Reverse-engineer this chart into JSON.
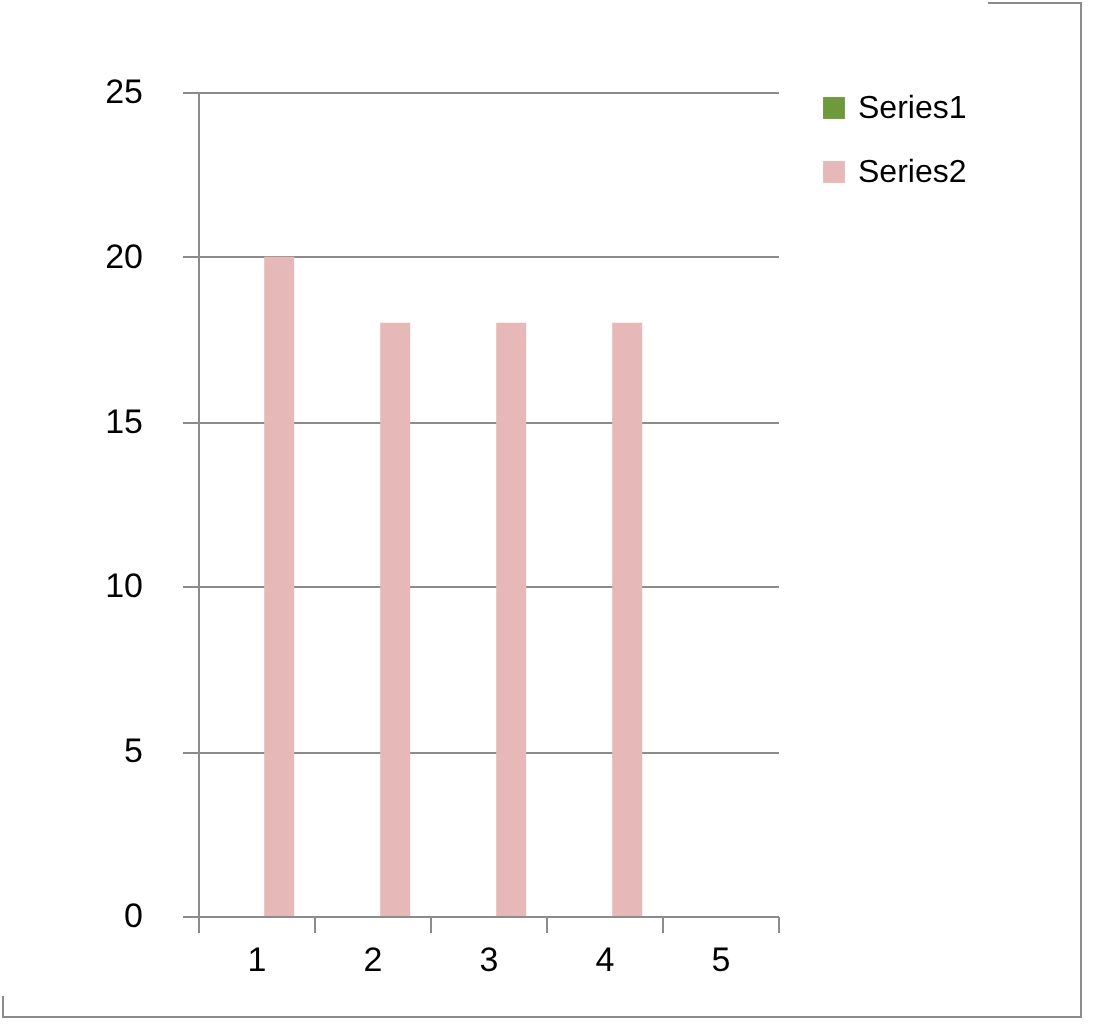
{
  "chart_data": {
    "type": "bar",
    "categories": [
      "1",
      "2",
      "3",
      "4",
      "5"
    ],
    "series": [
      {
        "name": "Series1",
        "color": "#6f9a3c",
        "values": [
          null,
          null,
          null,
          null,
          null
        ]
      },
      {
        "name": "Series2",
        "color": "#e6b9b8",
        "values": [
          20,
          18,
          18,
          18,
          null
        ]
      }
    ],
    "ylim": [
      0,
      25
    ],
    "yticks": [
      0,
      5,
      10,
      15,
      20,
      25
    ],
    "grid": "y",
    "legend": "right"
  }
}
